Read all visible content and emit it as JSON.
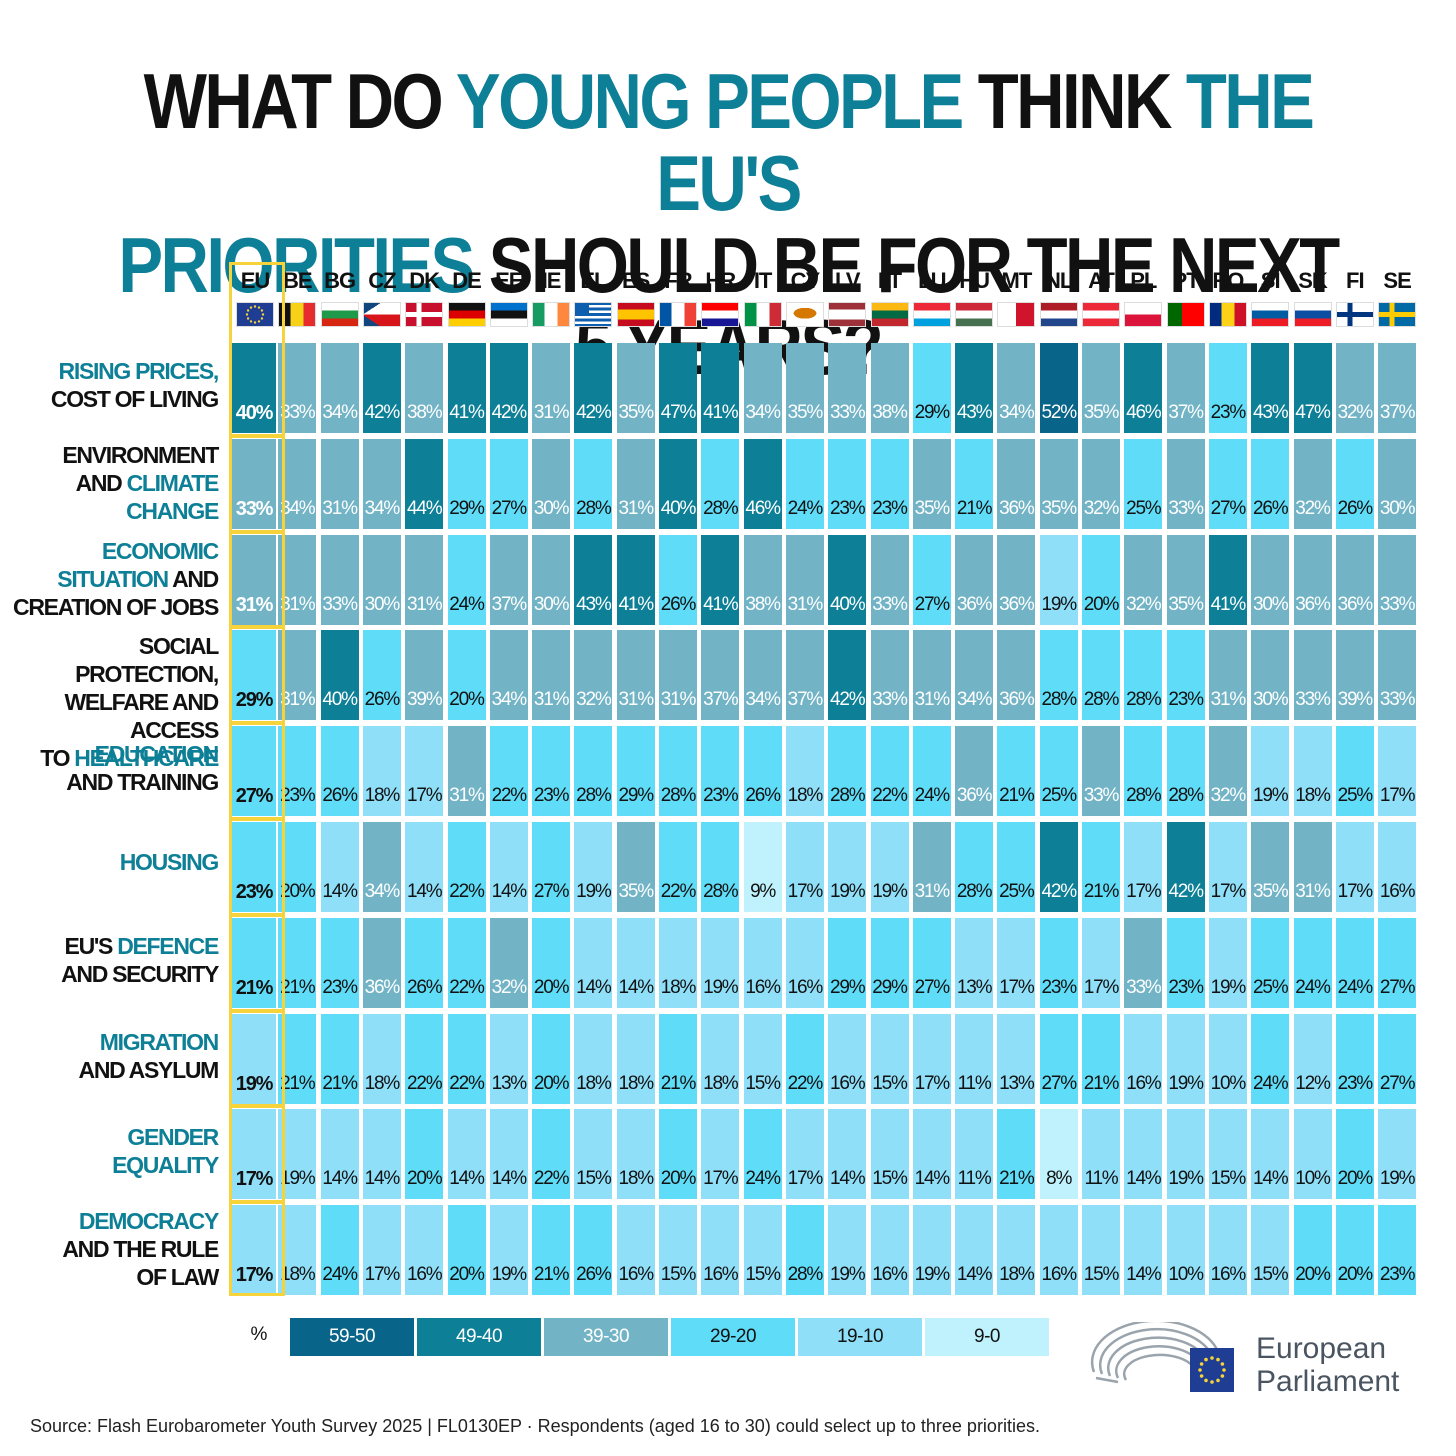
{
  "title": {
    "line1": [
      {
        "text": "WHAT DO ",
        "highlight": false
      },
      {
        "text": "YOUNG PEOPLE",
        "highlight": true
      },
      {
        "text": " THINK ",
        "highlight": false
      },
      {
        "text": "THE EU'S",
        "highlight": true
      }
    ],
    "line2": [
      {
        "text": "PRIORITIES",
        "highlight": true
      },
      {
        "text": " SHOULD BE FOR THE NEXT 5 YEARS?",
        "highlight": false
      }
    ]
  },
  "colors": {
    "highlight": "#0d7f96",
    "eu_frame": "#f6d33a",
    "bands": [
      "#09648a",
      "#0d7f96",
      "#72b4c6",
      "#5fdcf7",
      "#8fdff9",
      "#bff2fc"
    ]
  },
  "chart_data": {
    "type": "heatmap",
    "unit": "%",
    "columns": [
      "EU",
      "BE",
      "BG",
      "CZ",
      "DK",
      "DE",
      "EE",
      "IE",
      "EL",
      "ES",
      "FR",
      "HR",
      "IT",
      "CY",
      "LV",
      "LT",
      "LU",
      "HU",
      "MT",
      "NL",
      "AT",
      "PL",
      "PT",
      "RO",
      "SI",
      "SK",
      "FI",
      "SE"
    ],
    "rows": [
      {
        "label": [
          {
            "text": "RISING PRICES,",
            "highlight": true
          },
          {
            "text": "\nCOST OF LIVING",
            "highlight": false
          }
        ],
        "values": [
          40,
          33,
          34,
          42,
          38,
          41,
          42,
          31,
          42,
          35,
          47,
          41,
          34,
          35,
          33,
          38,
          29,
          43,
          34,
          52,
          35,
          46,
          37,
          23,
          43,
          47,
          32,
          37
        ]
      },
      {
        "label": [
          {
            "text": "ENVIRONMENT",
            "highlight": false
          },
          {
            "text": "\nAND ",
            "highlight": false
          },
          {
            "text": "CLIMATE",
            "highlight": true
          },
          {
            "text": "\nCHANGE",
            "highlight": true
          }
        ],
        "values": [
          33,
          34,
          31,
          34,
          44,
          29,
          27,
          30,
          28,
          31,
          40,
          28,
          46,
          24,
          23,
          23,
          35,
          21,
          36,
          35,
          32,
          25,
          33,
          27,
          26,
          32,
          26,
          30
        ]
      },
      {
        "label": [
          {
            "text": "ECONOMIC",
            "highlight": true
          },
          {
            "text": "\nSITUATION",
            "highlight": true
          },
          {
            "text": " AND",
            "highlight": false
          },
          {
            "text": "\nCREATION OF JOBS",
            "highlight": false
          }
        ],
        "values": [
          31,
          31,
          33,
          30,
          31,
          24,
          37,
          30,
          43,
          41,
          26,
          41,
          38,
          31,
          40,
          33,
          27,
          36,
          36,
          19,
          20,
          32,
          35,
          41,
          30,
          36,
          36,
          33
        ]
      },
      {
        "label": [
          {
            "text": "SOCIAL PROTECTION,",
            "highlight": false
          },
          {
            "text": "\nWELFARE AND ACCESS",
            "highlight": false
          },
          {
            "text": "\nTO ",
            "highlight": false
          },
          {
            "text": "HEALTHCARE",
            "highlight": true
          }
        ],
        "values": [
          29,
          31,
          40,
          26,
          39,
          20,
          34,
          31,
          32,
          31,
          31,
          37,
          34,
          37,
          42,
          33,
          31,
          34,
          36,
          28,
          28,
          28,
          23,
          31,
          30,
          33,
          39,
          33
        ]
      },
      {
        "label": [
          {
            "text": "EDUCATION",
            "highlight": true
          },
          {
            "text": "\nAND TRAINING",
            "highlight": false
          }
        ],
        "values": [
          27,
          23,
          26,
          18,
          17,
          31,
          22,
          23,
          28,
          29,
          28,
          23,
          26,
          18,
          28,
          22,
          24,
          36,
          21,
          25,
          33,
          28,
          28,
          32,
          19,
          18,
          25,
          17
        ]
      },
      {
        "label": [
          {
            "text": "HOUSING",
            "highlight": true
          }
        ],
        "values": [
          23,
          20,
          14,
          34,
          14,
          22,
          14,
          27,
          19,
          35,
          22,
          28,
          9,
          17,
          19,
          19,
          31,
          28,
          25,
          42,
          21,
          17,
          42,
          17,
          35,
          31,
          17,
          16
        ]
      },
      {
        "label": [
          {
            "text": "EU'S ",
            "highlight": false
          },
          {
            "text": "DEFENCE",
            "highlight": true
          },
          {
            "text": "\nAND SECURITY",
            "highlight": false
          }
        ],
        "values": [
          21,
          21,
          23,
          36,
          26,
          22,
          32,
          20,
          14,
          14,
          18,
          19,
          16,
          16,
          29,
          29,
          27,
          13,
          17,
          23,
          17,
          33,
          23,
          19,
          25,
          24,
          24,
          27
        ]
      },
      {
        "label": [
          {
            "text": "MIGRATION",
            "highlight": true
          },
          {
            "text": "\nAND ASYLUM",
            "highlight": false
          }
        ],
        "values": [
          19,
          21,
          21,
          18,
          22,
          22,
          13,
          20,
          18,
          18,
          21,
          18,
          15,
          22,
          16,
          15,
          17,
          11,
          13,
          27,
          21,
          16,
          19,
          10,
          24,
          12,
          23,
          27
        ]
      },
      {
        "label": [
          {
            "text": "GENDER",
            "highlight": true
          },
          {
            "text": "\nEQUALITY",
            "highlight": true
          }
        ],
        "values": [
          17,
          19,
          14,
          14,
          20,
          14,
          14,
          22,
          15,
          18,
          20,
          17,
          24,
          17,
          14,
          15,
          14,
          11,
          21,
          8,
          11,
          14,
          19,
          15,
          14,
          10,
          20,
          19
        ]
      },
      {
        "label": [
          {
            "text": "DEMOCRACY",
            "highlight": true
          },
          {
            "text": "\nAND THE RULE",
            "highlight": false
          },
          {
            "text": "\nOF LAW",
            "highlight": false
          }
        ],
        "values": [
          17,
          18,
          24,
          17,
          16,
          20,
          19,
          21,
          26,
          16,
          15,
          16,
          15,
          28,
          19,
          16,
          19,
          14,
          18,
          16,
          15,
          14,
          10,
          16,
          15,
          20,
          20,
          23
        ]
      }
    ],
    "legend": {
      "unit_label": "%",
      "bands": [
        {
          "label": "59-50",
          "min": 50,
          "max": 59
        },
        {
          "label": "49-40",
          "min": 40,
          "max": 49
        },
        {
          "label": "39-30",
          "min": 30,
          "max": 39
        },
        {
          "label": "29-20",
          "min": 20,
          "max": 29
        },
        {
          "label": "19-10",
          "min": 10,
          "max": 19
        },
        {
          "label": "9-0",
          "min": 0,
          "max": 9
        }
      ]
    }
  },
  "logo": {
    "line1": "European",
    "line2": "Parliament"
  },
  "source": "Source: Flash Eurobarometer Youth Survey 2025 | FL0130EP · Respondents (aged 16 to 30) could select up to three priorities."
}
